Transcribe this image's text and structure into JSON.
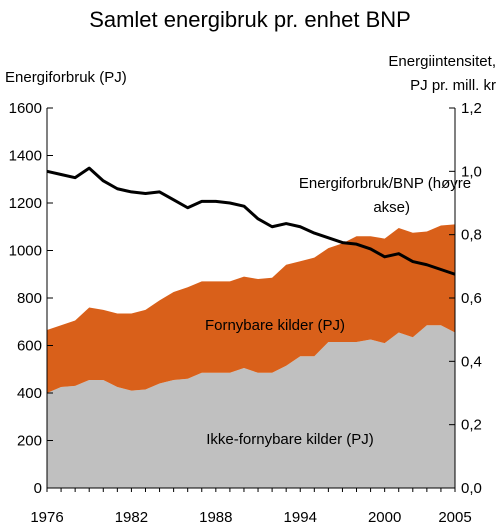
{
  "chart_data": {
    "type": "area",
    "title": "Samlet energibruk pr. enhet BNP",
    "left_axis_label": "Energiforbruk (PJ)",
    "right_axis_label_lines": [
      "Energiintensitet,",
      "PJ pr. mill. kr"
    ],
    "x_tick_labels": [
      "1976",
      "1982",
      "1988",
      "1994",
      "2000",
      "2005"
    ],
    "y_left_ticks": [
      "0",
      "200",
      "400",
      "600",
      "800",
      "1000",
      "1200",
      "1400",
      "1600"
    ],
    "y_right_ticks": [
      "0,0",
      "0,2",
      "0,4",
      "0,6",
      "0,8",
      "1,0",
      "1,2"
    ],
    "y_left_range": [
      0,
      1600
    ],
    "y_right_range": [
      0,
      1.2
    ],
    "x_range": [
      1976,
      2005
    ],
    "stacked": true,
    "years": [
      1976,
      1977,
      1978,
      1979,
      1980,
      1981,
      1982,
      1983,
      1984,
      1985,
      1986,
      1987,
      1988,
      1989,
      1990,
      1991,
      1992,
      1993,
      1994,
      1995,
      1996,
      1997,
      1998,
      1999,
      2000,
      2001,
      2002,
      2003,
      2004,
      2005
    ],
    "series": [
      {
        "name": "Ikke-fornybare kilder (PJ)",
        "axis": "left",
        "color": "#c0c0c0",
        "values": [
          400,
          425,
          430,
          455,
          455,
          425,
          410,
          415,
          440,
          455,
          460,
          485,
          485,
          485,
          505,
          485,
          485,
          515,
          555,
          555,
          615,
          615,
          615,
          625,
          610,
          655,
          635,
          685,
          685,
          655
        ]
      },
      {
        "name": "Fornybare kilder (PJ)",
        "axis": "left",
        "color": "#d9601a",
        "values": [
          265,
          260,
          275,
          305,
          295,
          310,
          325,
          335,
          350,
          370,
          385,
          385,
          385,
          385,
          385,
          395,
          400,
          425,
          400,
          415,
          395,
          415,
          445,
          435,
          440,
          440,
          440,
          395,
          420,
          455
        ]
      },
      {
        "name": "Energiforbruk/BNP (høyre akse)",
        "axis": "right",
        "color": "#000000",
        "values": [
          1.0,
          0.99,
          0.98,
          1.01,
          0.97,
          0.945,
          0.935,
          0.93,
          0.935,
          0.91,
          0.885,
          0.905,
          0.905,
          0.9,
          0.89,
          0.85,
          0.825,
          0.835,
          0.825,
          0.805,
          0.79,
          0.775,
          0.77,
          0.755,
          0.73,
          0.74,
          0.715,
          0.705,
          0.69,
          0.675
        ]
      }
    ],
    "grid": false,
    "legend": "labels placed inside chart"
  }
}
